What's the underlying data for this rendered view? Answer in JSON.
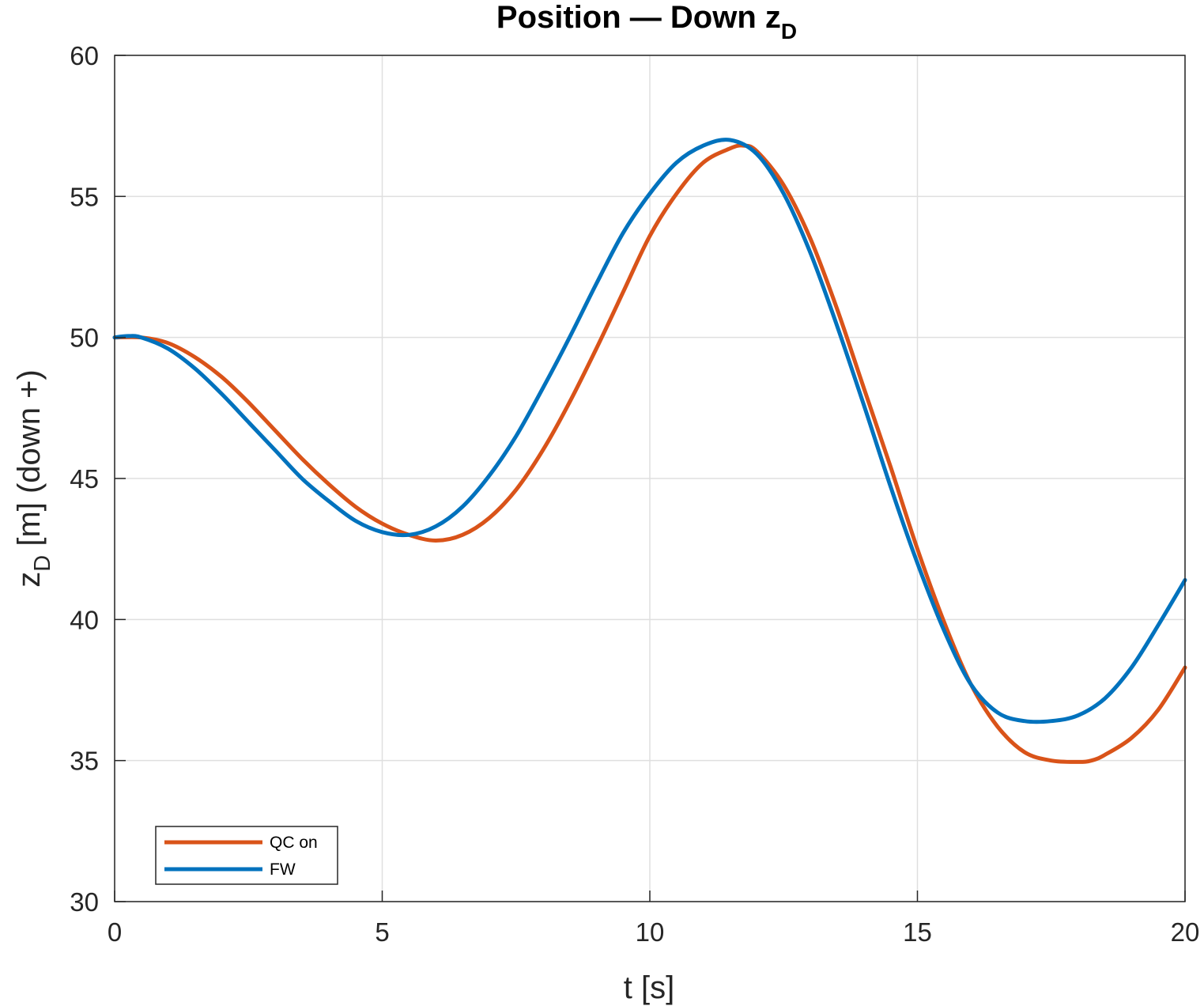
{
  "chart_data": {
    "type": "line",
    "title": "Position — Down z",
    "title_subscript": "D",
    "xlabel": "t [s]",
    "ylabel_main": "z",
    "ylabel_subscript": "D",
    "ylabel_rest": " [m] (down +)",
    "xlim": [
      0,
      20
    ],
    "ylim": [
      30,
      60
    ],
    "xticks": [
      0,
      5,
      10,
      15,
      20
    ],
    "yticks": [
      30,
      35,
      40,
      45,
      50,
      55,
      60
    ],
    "grid": true,
    "legend_position": "bottom-left",
    "series": [
      {
        "name": "QC on",
        "color": "#D95319",
        "x": [
          0,
          0.5,
          1,
          1.5,
          2,
          2.5,
          3,
          3.5,
          4,
          4.5,
          5,
          5.5,
          6,
          6.5,
          7,
          7.5,
          8,
          8.5,
          9,
          9.5,
          10,
          10.5,
          11,
          11.5,
          11.75,
          12,
          12.5,
          13,
          13.5,
          14,
          14.5,
          15,
          15.5,
          16,
          16.5,
          17,
          17.5,
          18,
          18.25,
          18.5,
          19,
          19.5,
          20
        ],
        "y": [
          50.0,
          50.0,
          49.8,
          49.3,
          48.6,
          47.7,
          46.7,
          45.7,
          44.8,
          44.0,
          43.4,
          43.0,
          42.8,
          43.0,
          43.6,
          44.6,
          46.0,
          47.7,
          49.6,
          51.6,
          53.6,
          55.1,
          56.2,
          56.7,
          56.8,
          56.6,
          55.4,
          53.5,
          51.0,
          48.2,
          45.4,
          42.5,
          39.9,
          37.7,
          36.2,
          35.3,
          35.0,
          34.95,
          35.0,
          35.2,
          35.8,
          36.8,
          38.3
        ]
      },
      {
        "name": "FW",
        "color": "#0072BD",
        "x": [
          0,
          0.25,
          0.5,
          1,
          1.5,
          2,
          2.5,
          3,
          3.5,
          4,
          4.5,
          5,
          5.5,
          6,
          6.5,
          7,
          7.5,
          8,
          8.5,
          9,
          9.5,
          10,
          10.5,
          11,
          11.5,
          12,
          12.5,
          13,
          13.5,
          14,
          14.5,
          15,
          15.5,
          16,
          16.5,
          17,
          17.5,
          18,
          18.5,
          19,
          19.5,
          20
        ],
        "y": [
          50.0,
          50.05,
          50.0,
          49.6,
          48.9,
          48.0,
          47.0,
          46.0,
          45.0,
          44.2,
          43.5,
          43.1,
          43.0,
          43.3,
          44.0,
          45.1,
          46.5,
          48.2,
          50.0,
          51.9,
          53.7,
          55.1,
          56.2,
          56.8,
          57.0,
          56.5,
          55.1,
          53.0,
          50.4,
          47.6,
          44.7,
          42.0,
          39.6,
          37.7,
          36.7,
          36.4,
          36.4,
          36.6,
          37.2,
          38.3,
          39.8,
          41.4
        ]
      }
    ]
  }
}
